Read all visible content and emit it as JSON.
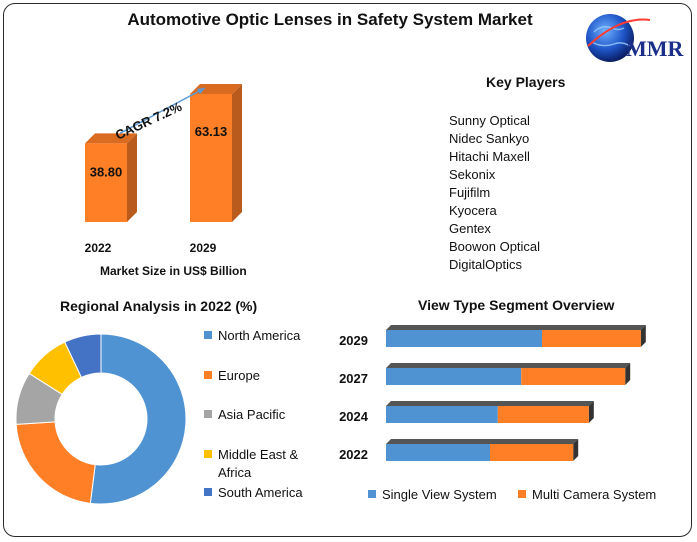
{
  "title": "Automotive Optic Lenses in Safety System Market",
  "logo": {
    "text": "MMR"
  },
  "colors": {
    "orange": "#ff7f27",
    "orange_dark": "#c7560d",
    "blue": "#4f93d2",
    "gray": "#a5a5a5",
    "yellow": "#ffc000",
    "navy": "#4472c4",
    "arrow": "#5b9bd5"
  },
  "market_size": {
    "caption": "Market Size in US$ Billion",
    "cagr_label": "CAGR 7.2%"
  },
  "key_players": {
    "heading": "Key Players",
    "items": [
      "Sunny Optical",
      "Nidec Sankyo",
      "Hitachi Maxell",
      "Sekonix",
      "Fujifilm",
      "Kyocera",
      "Gentex",
      "Boowon Optical",
      "DigitalOptics"
    ]
  },
  "regional": {
    "heading": "Regional Analysis in 2022 (%)"
  },
  "view_type": {
    "heading": "View Type Segment Overview"
  },
  "chart_data": [
    {
      "type": "bar",
      "title": "",
      "categories": [
        "2022",
        "2029"
      ],
      "values": [
        38.8,
        63.13
      ],
      "value_labels": [
        "38.80",
        "63.13"
      ],
      "xlabel": "Market Size in US$ Billion",
      "ylabel": "",
      "annotation": "CAGR 7.2%",
      "color": "#ff7f27"
    },
    {
      "type": "pie",
      "title": "Regional Analysis in 2022 (%)",
      "labels": [
        "North America",
        "Europe",
        "Asia Pacific",
        "Middle East & Africa",
        "South America"
      ],
      "values": [
        52,
        22,
        10,
        9,
        7
      ],
      "colors": [
        "#4f93d2",
        "#ff7f27",
        "#a5a5a5",
        "#ffc000",
        "#4472c4"
      ],
      "legend": "right"
    },
    {
      "type": "bar",
      "orientation": "horizontal",
      "stacked": true,
      "title": "View Type Segment Overview",
      "categories": [
        "2029",
        "2027",
        "2024",
        "2022"
      ],
      "series": [
        {
          "name": "Single View System",
          "values": [
            60,
            52,
            43,
            40
          ],
          "color": "#4f93d2"
        },
        {
          "name": "Multi Camera System",
          "values": [
            38,
            40,
            35,
            32
          ],
          "color": "#ff7f27"
        }
      ],
      "legend": "bottom"
    }
  ]
}
